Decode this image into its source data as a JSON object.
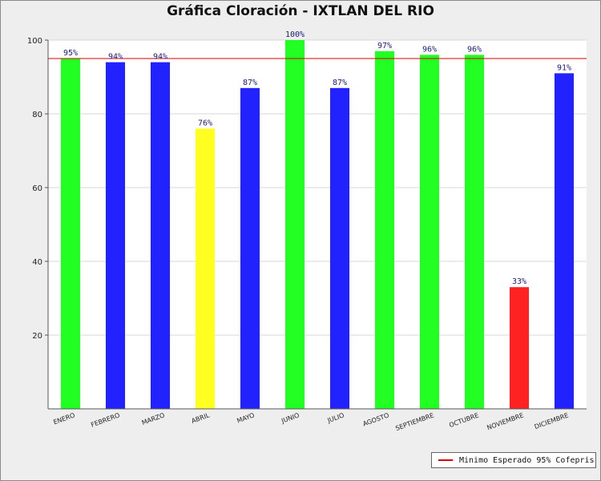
{
  "chart_data": {
    "type": "bar",
    "title": "Gráfica Cloración - IXTLAN DEL RIO",
    "xlabel": "",
    "ylabel": "",
    "ylim": [
      0,
      100
    ],
    "y_ticks": [
      20,
      40,
      60,
      80,
      100
    ],
    "grid": true,
    "categories": [
      "ENERO",
      "FEBRERO",
      "MARZO",
      "ABRIL",
      "MAYO",
      "JUNIO",
      "JULIO",
      "AGOSTO",
      "SEPTIEMBRE",
      "OCTUBRE",
      "NOVIEMBRE",
      "DICIEMBRE"
    ],
    "values": [
      95,
      94,
      94,
      76,
      87,
      100,
      87,
      97,
      96,
      96,
      33,
      91
    ],
    "data_labels": [
      "95%",
      "94%",
      "94%",
      "76%",
      "87%",
      "100%",
      "87%",
      "97%",
      "96%",
      "96%",
      "33%",
      "91%"
    ],
    "bar_colors": [
      "#22ff22",
      "#2222ff",
      "#2222ff",
      "#ffff22",
      "#2222ff",
      "#22ff22",
      "#2222ff",
      "#22ff22",
      "#22ff22",
      "#22ff22",
      "#ff2222",
      "#2222ff"
    ],
    "reference_line": {
      "name": "Minimo Esperado 95% Cofepris",
      "value": 95,
      "color": "#dd0000"
    },
    "legend_position": "bottom-right"
  }
}
